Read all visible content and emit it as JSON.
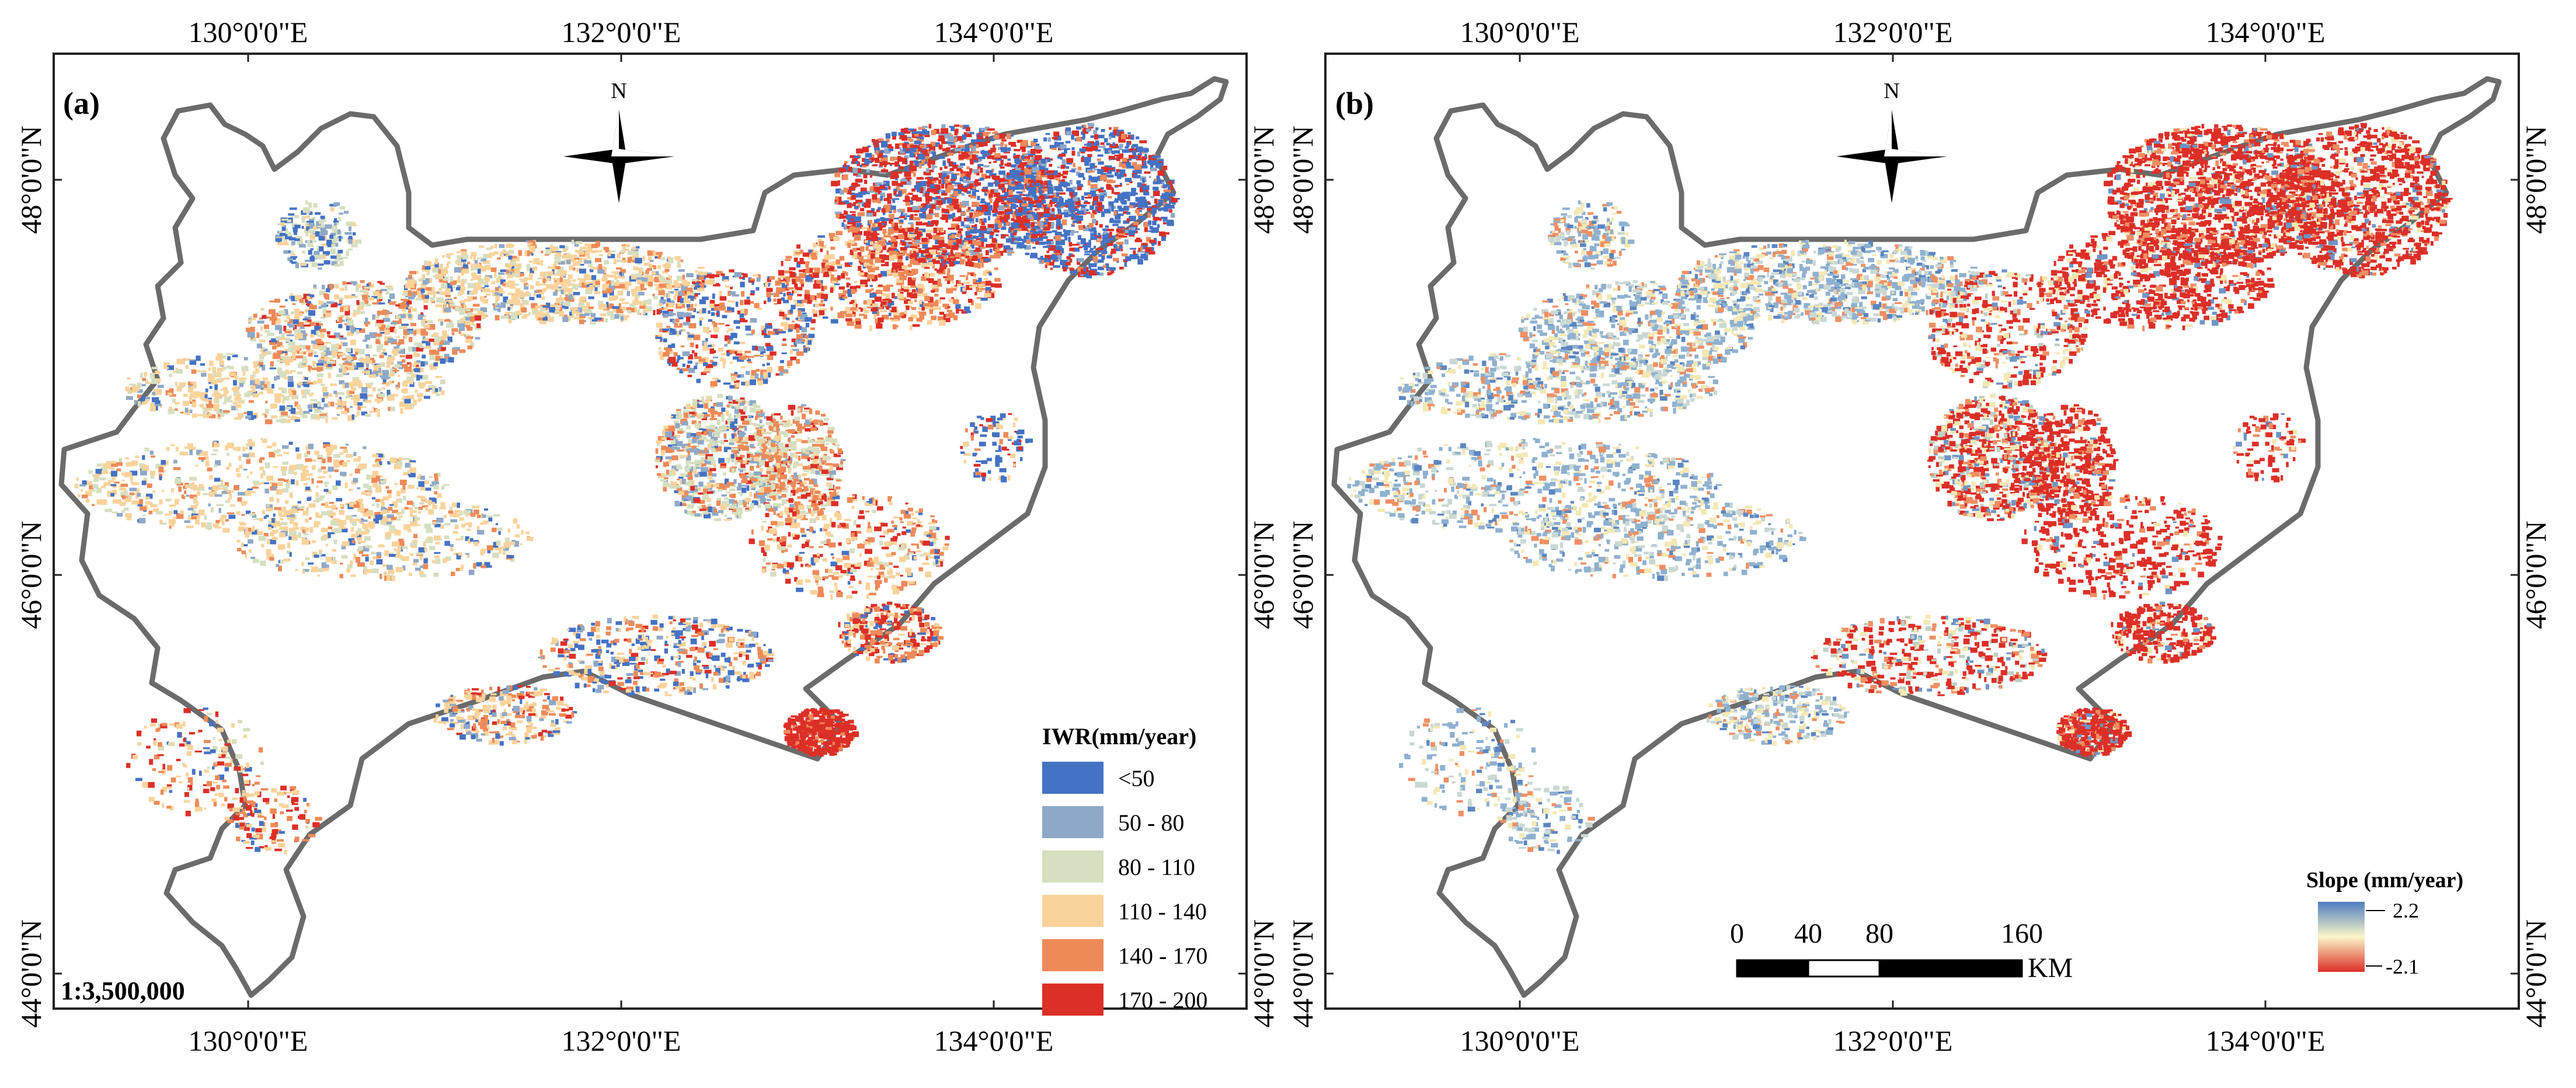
{
  "colors": {
    "class_1": "#4472c4",
    "class_2": "#8ea9c8",
    "class_3": "#d6dfbf",
    "class_4": "#fad39a",
    "class_5": "#ee8a58",
    "class_6": "#dc2f27",
    "boundary": "#6b6b6b",
    "frame": "#222222"
  },
  "panel_a": {
    "label": "(a)",
    "scale_text": "1:3,500,000",
    "legend": {
      "title": "IWR(mm/year)",
      "classes": [
        "<50",
        "50 - 80",
        "80 - 110",
        "110 - 140",
        "140 - 170",
        "170 - 200"
      ]
    }
  },
  "panel_b": {
    "label": "(b)",
    "legend": {
      "title": "Slope (mm/year)",
      "max_label": "2.2",
      "min_label": "-2.1"
    },
    "scalebar": {
      "ticks": [
        "0",
        "40",
        "80",
        "160"
      ],
      "unit": "KM"
    }
  },
  "north_letter": "N",
  "axis": {
    "lon_labels": [
      "130°0'0\"E",
      "132°0'0\"E",
      "134°0'0\"E"
    ],
    "lat_labels": [
      "48°0'0\"N",
      "46°0'0\"N",
      "44°0'0\"N"
    ]
  }
}
